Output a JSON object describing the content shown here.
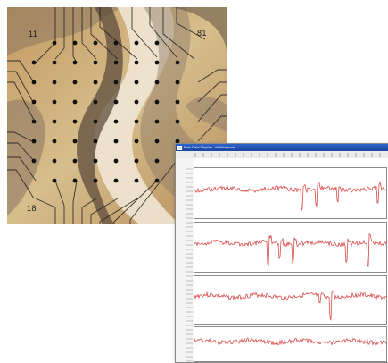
{
  "image": {
    "electrode_labels": [
      "11",
      "81",
      "18"
    ]
  },
  "window": {
    "title": "Raw Data Display - Multichannel"
  },
  "colors": {
    "trace": "#d94a4a",
    "titlebar": "#2f63c9",
    "panel_border": "#8c8c8c"
  },
  "icons": [
    "app-icon"
  ]
}
